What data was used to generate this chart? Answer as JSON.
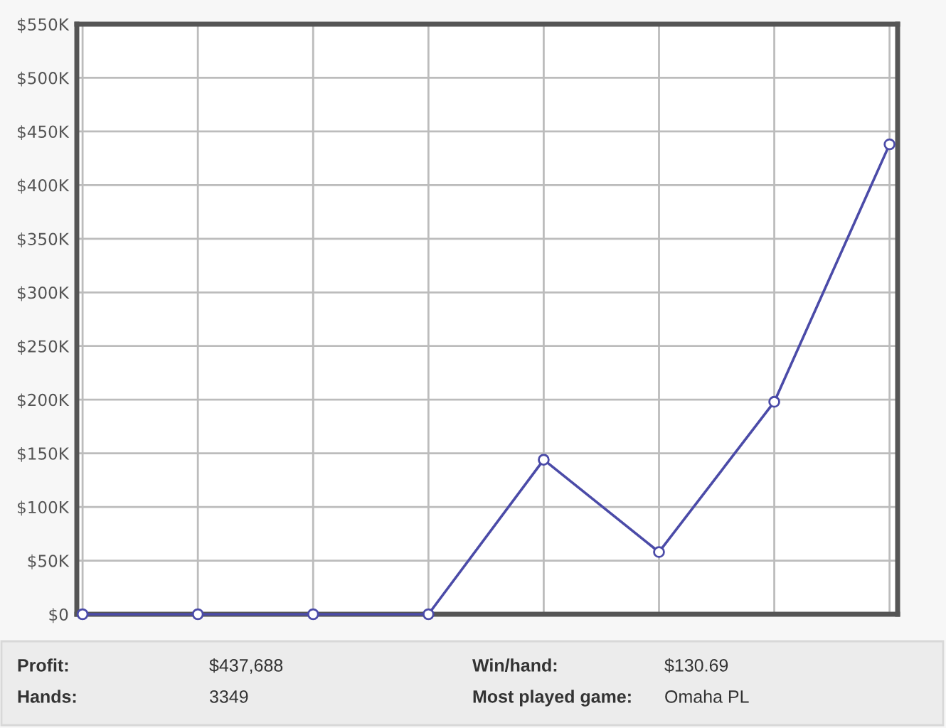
{
  "chart_data": {
    "type": "line",
    "categories": [
      null,
      null,
      null,
      null,
      null,
      null,
      null,
      null
    ],
    "values": [
      0,
      0,
      0,
      0,
      144000,
      58000,
      198000,
      438000
    ],
    "color": "#4b4ba8",
    "ylim": [
      0,
      550000
    ],
    "yticks": [
      {
        "value": 0,
        "label": "$0"
      },
      {
        "value": 50000,
        "label": "$50K"
      },
      {
        "value": 100000,
        "label": "$100K"
      },
      {
        "value": 150000,
        "label": "$150K"
      },
      {
        "value": 200000,
        "label": "$200K"
      },
      {
        "value": 250000,
        "label": "$250K"
      },
      {
        "value": 300000,
        "label": "$300K"
      },
      {
        "value": 350000,
        "label": "$350K"
      },
      {
        "value": 400000,
        "label": "$400K"
      },
      {
        "value": 450000,
        "label": "$450K"
      },
      {
        "value": 500000,
        "label": "$500K"
      },
      {
        "value": 550000,
        "label": "$550K"
      }
    ],
    "grid": true,
    "marker": "circle",
    "line_style": "solid",
    "tick_labels": "y",
    "annotations": [
      "Profit:",
      "$437,688",
      "Win/hand:",
      "$130.69",
      "Hands:",
      "3349",
      "Most played game:",
      "Omaha PL"
    ]
  }
}
